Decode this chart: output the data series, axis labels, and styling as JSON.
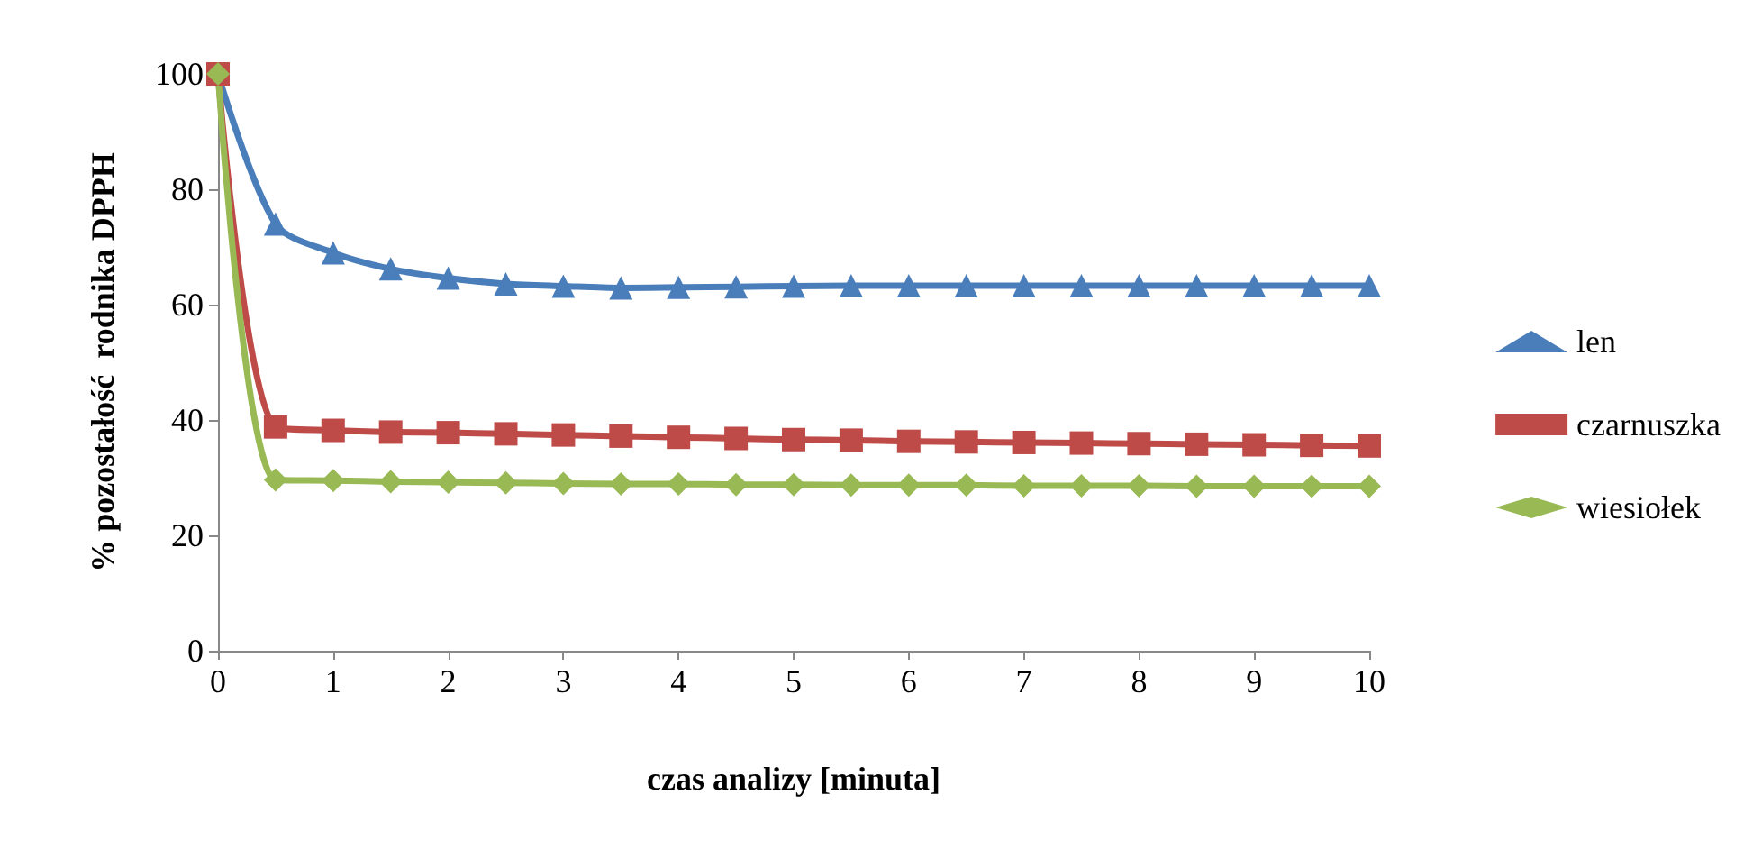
{
  "chart_data": {
    "type": "line",
    "xlabel": "czas analizy [minuta]",
    "ylabel": "% pozostałość  rodnika DPPH",
    "x": [
      0,
      0.5,
      1,
      1.5,
      2,
      2.5,
      3,
      3.5,
      4,
      4.5,
      5,
      5.5,
      6,
      6.5,
      7,
      7.5,
      8,
      8.5,
      9,
      9.5,
      10
    ],
    "series": [
      {
        "name": "len",
        "color": "#4a7ebb",
        "marker": "triangle",
        "values": [
          100,
          74,
          69,
          66.2,
          64.6,
          63.6,
          63.2,
          62.9,
          63,
          63.1,
          63.2,
          63.3,
          63.3,
          63.3,
          63.3,
          63.3,
          63.3,
          63.3,
          63.3,
          63.3,
          63.3
        ]
      },
      {
        "name": "czarnuszka",
        "color": "#be4b48",
        "marker": "square",
        "values": [
          100,
          38.8,
          38.2,
          37.9,
          37.8,
          37.6,
          37.4,
          37.2,
          37.0,
          36.8,
          36.6,
          36.5,
          36.3,
          36.2,
          36.1,
          36.0,
          35.9,
          35.8,
          35.7,
          35.6,
          35.5
        ]
      },
      {
        "name": "wiesiołek",
        "color": "#98b954",
        "marker": "diamond",
        "values": [
          100,
          29.6,
          29.5,
          29.3,
          29.2,
          29.1,
          29.0,
          28.9,
          28.9,
          28.8,
          28.8,
          28.7,
          28.7,
          28.7,
          28.6,
          28.6,
          28.6,
          28.5,
          28.5,
          28.5,
          28.5
        ]
      }
    ],
    "xlim": [
      0,
      10
    ],
    "xticks": [
      0,
      1,
      2,
      3,
      4,
      5,
      6,
      7,
      8,
      9,
      10
    ],
    "ylim": [
      0,
      100
    ],
    "yticks": [
      0,
      20,
      40,
      60,
      80,
      100
    ],
    "grid": false,
    "legend": "right",
    "line_style": "solid"
  }
}
